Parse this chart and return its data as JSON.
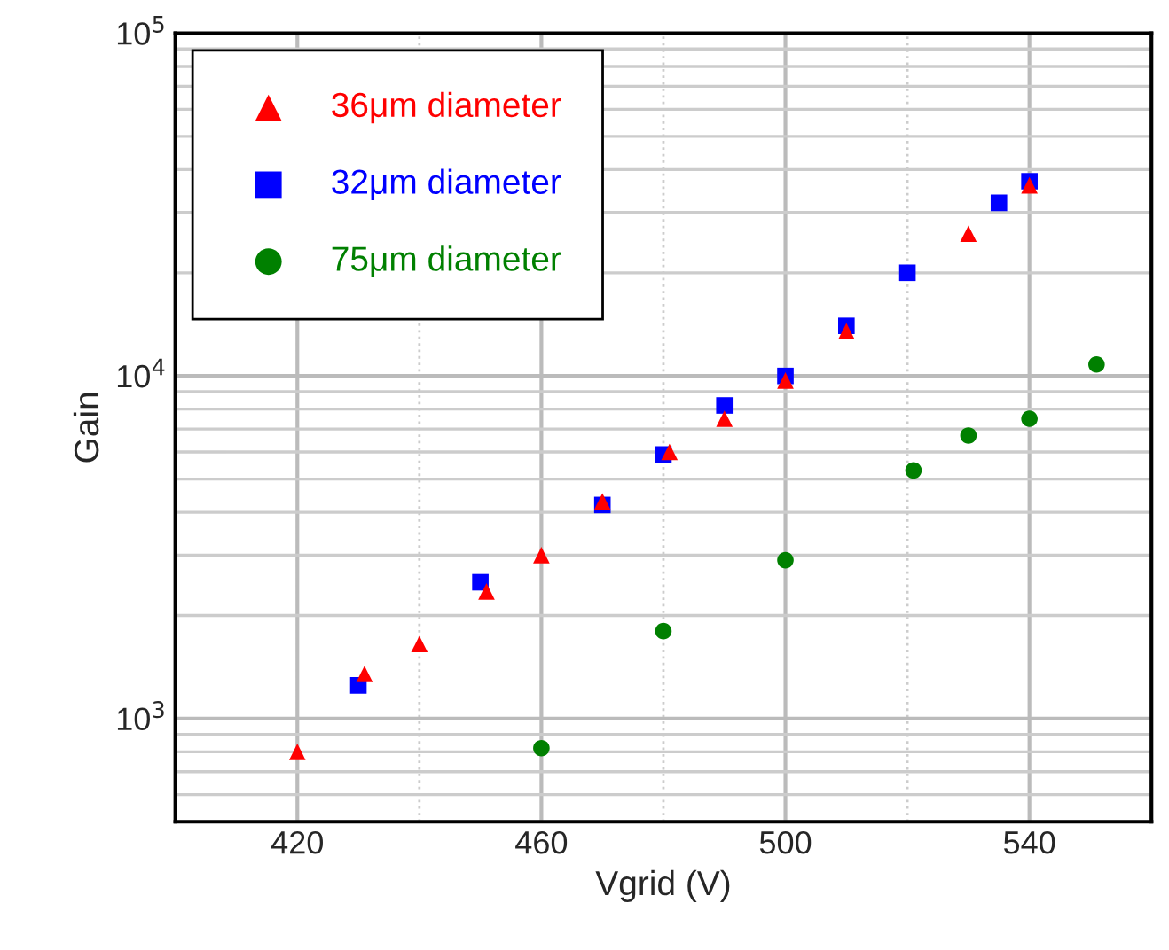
{
  "chart_data": {
    "type": "scatter",
    "xlabel": "Vgrid (V)",
    "ylabel": "Gain",
    "log": "y",
    "grid": true,
    "legend": "top left",
    "xlim": [
      400,
      560
    ],
    "xticks": [
      420,
      460,
      500,
      540
    ],
    "ylim": [
      500,
      100000
    ],
    "yticks": [
      {
        "value": 1000,
        "label": "10$^{3}$"
      },
      {
        "value": 10000,
        "label": "10$^{4}$"
      },
      {
        "value": 100000,
        "label": "10$^{5}$"
      }
    ],
    "series": [
      {
        "name": "36μm diameter",
        "color": "#ff0000",
        "marker": "triangle",
        "x": [
          420,
          431,
          440,
          451,
          460,
          470,
          481,
          490,
          500,
          510,
          530,
          540
        ],
        "values": [
          800,
          1350,
          1650,
          2350,
          3000,
          4300,
          6000,
          7500,
          9700,
          13500,
          26000,
          36000
        ]
      },
      {
        "name": "32μm diameter",
        "color": "#0000ff",
        "marker": "square",
        "x": [
          430,
          450,
          470,
          480,
          490,
          500,
          510,
          520,
          535,
          540
        ],
        "values": [
          1250,
          2500,
          4200,
          5900,
          8200,
          10000,
          14000,
          20000,
          32000,
          37000
        ]
      },
      {
        "name": "75μm diameter",
        "color": "#008000",
        "marker": "circle",
        "x": [
          460,
          480,
          500,
          521,
          530,
          540,
          551
        ],
        "values": [
          820,
          1800,
          2900,
          5300,
          6700,
          7500,
          10800
        ]
      }
    ]
  }
}
